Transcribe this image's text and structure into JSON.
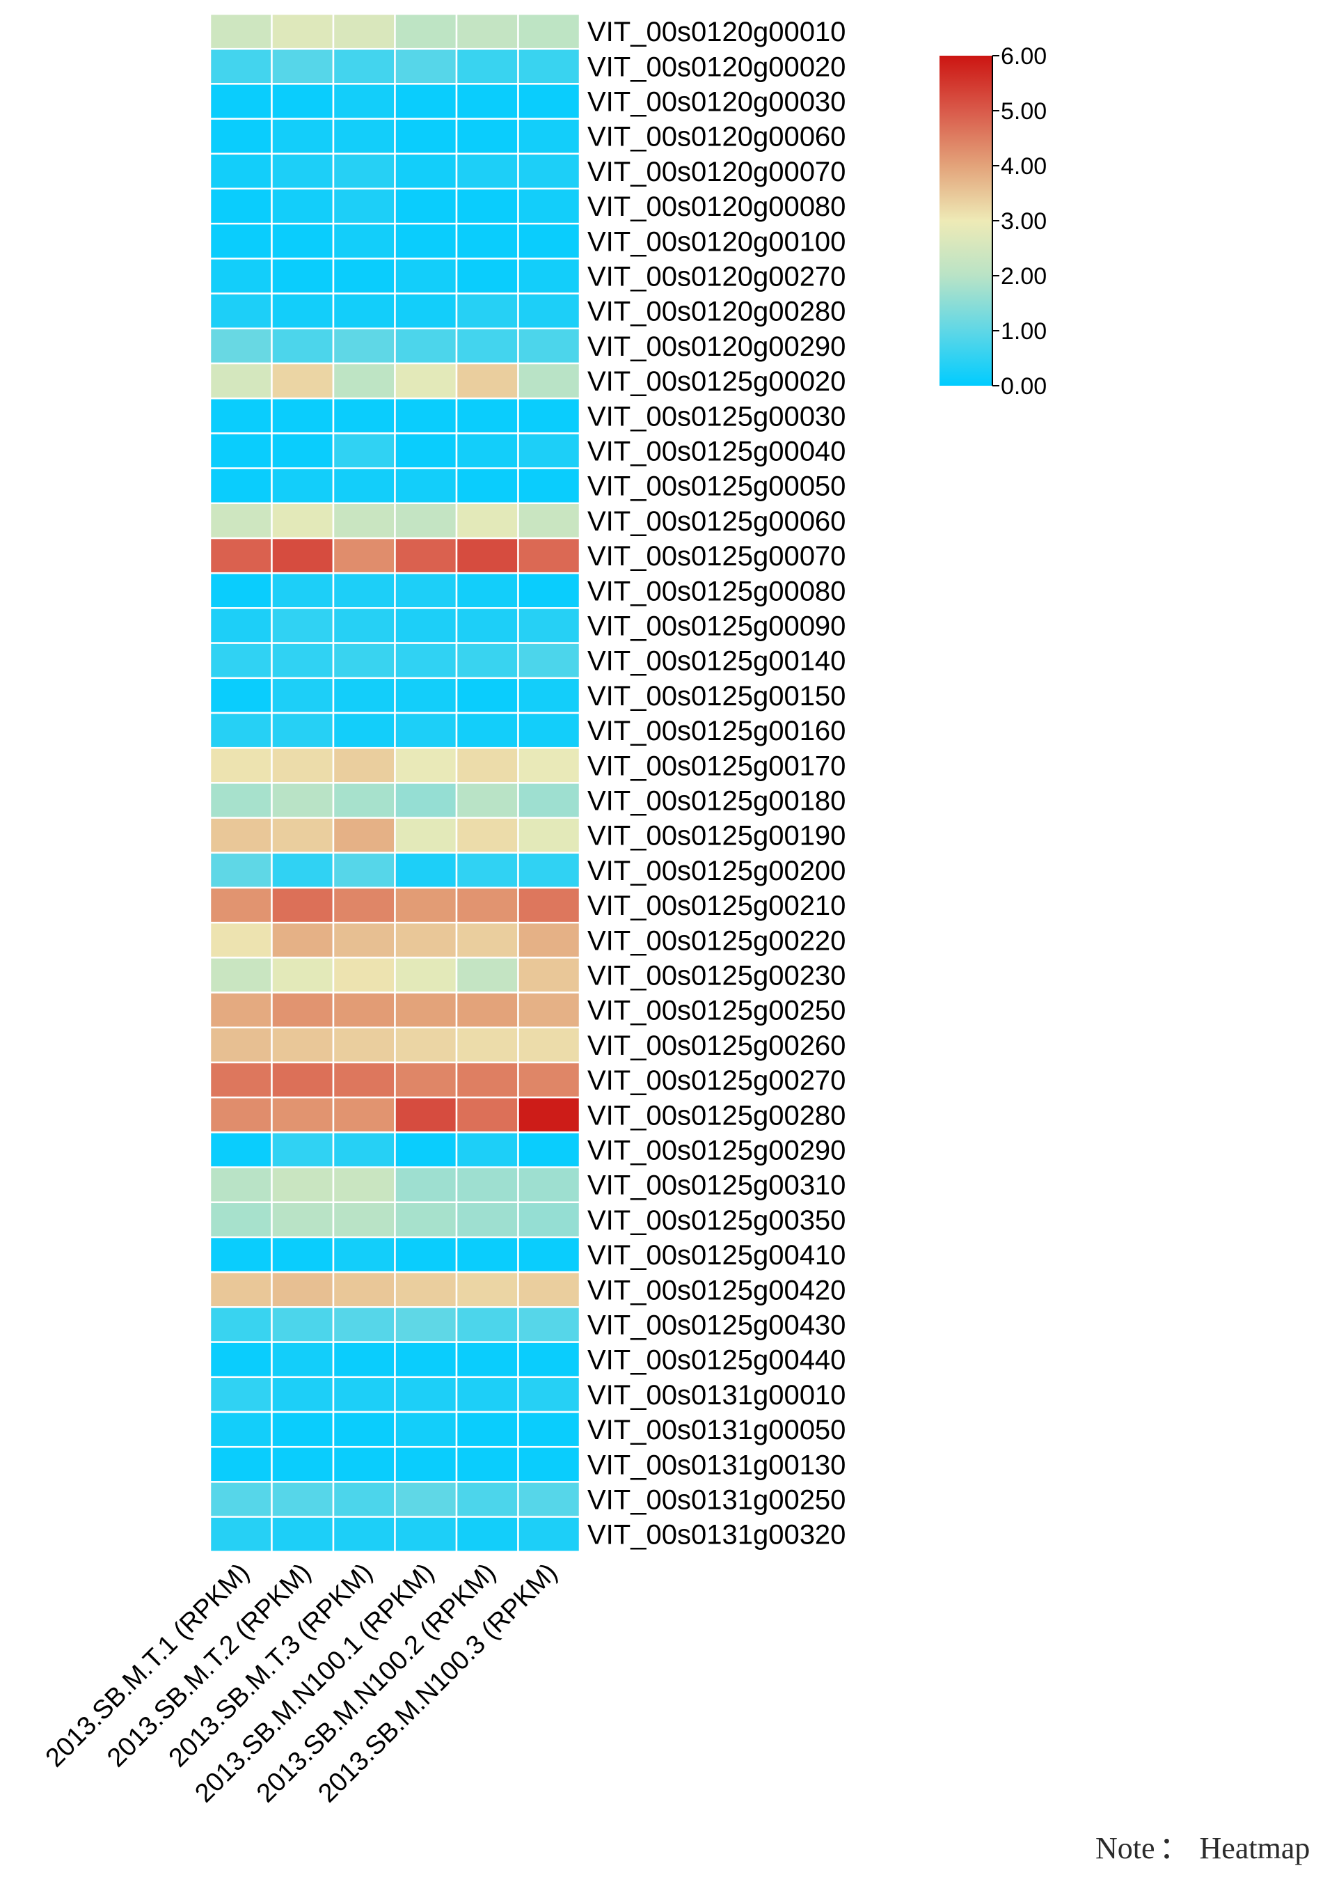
{
  "chart_data": {
    "type": "heatmap",
    "columns": [
      "2013.SB.M.T.1 (RPKM)",
      "2013.SB.M.T.2 (RPKM)",
      "2013.SB.M.T.3 (RPKM)",
      "2013.SB.M.N100.1 (RPKM)",
      "2013.SB.M.N100.2 (RPKM)",
      "2013.SB.M.N100.3 (RPKM)"
    ],
    "rows": [
      {
        "name": "VIT_00s0120g00010",
        "values": [
          2.4,
          2.7,
          2.6,
          2.1,
          2.2,
          2.1
        ]
      },
      {
        "name": "VIT_00s0120g00020",
        "values": [
          0.7,
          0.9,
          0.7,
          0.9,
          0.6,
          0.6
        ]
      },
      {
        "name": "VIT_00s0120g00030",
        "values": [
          0.1,
          0.1,
          0.2,
          0.1,
          0.1,
          0.1
        ]
      },
      {
        "name": "VIT_00s0120g00060",
        "values": [
          0.1,
          0.2,
          0.2,
          0.1,
          0.1,
          0.2
        ]
      },
      {
        "name": "VIT_00s0120g00070",
        "values": [
          0.2,
          0.3,
          0.4,
          0.2,
          0.3,
          0.3
        ]
      },
      {
        "name": "VIT_00s0120g00080",
        "values": [
          0.1,
          0.2,
          0.3,
          0.1,
          0.1,
          0.2
        ]
      },
      {
        "name": "VIT_00s0120g00100",
        "values": [
          0.1,
          0.1,
          0.2,
          0.1,
          0.1,
          0.1
        ]
      },
      {
        "name": "VIT_00s0120g00270",
        "values": [
          0.2,
          0.1,
          0.1,
          0.2,
          0.1,
          0.2
        ]
      },
      {
        "name": "VIT_00s0120g00280",
        "values": [
          0.3,
          0.2,
          0.2,
          0.2,
          0.4,
          0.3
        ]
      },
      {
        "name": "VIT_00s0120g00290",
        "values": [
          1.1,
          0.8,
          1.0,
          0.8,
          0.7,
          0.8
        ]
      },
      {
        "name": "VIT_00s0125g00020",
        "values": [
          2.5,
          3.3,
          2.1,
          2.8,
          3.4,
          2.0
        ]
      },
      {
        "name": "VIT_00s0125g00030",
        "values": [
          0.1,
          0.1,
          0.1,
          0.1,
          0.1,
          0.1
        ]
      },
      {
        "name": "VIT_00s0125g00040",
        "values": [
          0.1,
          0.1,
          0.5,
          0.1,
          0.2,
          0.3
        ]
      },
      {
        "name": "VIT_00s0125g00050",
        "values": [
          0.1,
          0.2,
          0.2,
          0.2,
          0.1,
          0.1
        ]
      },
      {
        "name": "VIT_00s0125g00060",
        "values": [
          2.4,
          2.8,
          2.3,
          2.2,
          2.8,
          2.3
        ]
      },
      {
        "name": "VIT_00s0125g00070",
        "values": [
          4.9,
          5.2,
          4.3,
          4.9,
          5.2,
          4.8
        ]
      },
      {
        "name": "VIT_00s0125g00080",
        "values": [
          0.1,
          0.3,
          0.3,
          0.3,
          0.2,
          0.1
        ]
      },
      {
        "name": "VIT_00s0125g00090",
        "values": [
          0.3,
          0.5,
          0.4,
          0.3,
          0.3,
          0.4
        ]
      },
      {
        "name": "VIT_00s0125g00140",
        "values": [
          0.5,
          0.5,
          0.6,
          0.5,
          0.6,
          0.8
        ]
      },
      {
        "name": "VIT_00s0125g00150",
        "values": [
          0.1,
          0.3,
          0.2,
          0.2,
          0.1,
          0.2
        ]
      },
      {
        "name": "VIT_00s0125g00160",
        "values": [
          0.4,
          0.4,
          0.2,
          0.3,
          0.2,
          0.2
        ]
      },
      {
        "name": "VIT_00s0125g00170",
        "values": [
          3.1,
          3.2,
          3.4,
          2.9,
          3.2,
          2.9
        ]
      },
      {
        "name": "VIT_00s0125g00180",
        "values": [
          1.8,
          2.0,
          1.8,
          1.6,
          2.0,
          1.7
        ]
      },
      {
        "name": "VIT_00s0125g00190",
        "values": [
          3.5,
          3.4,
          3.8,
          2.8,
          3.2,
          2.8
        ]
      },
      {
        "name": "VIT_00s0125g00200",
        "values": [
          1.0,
          0.5,
          0.9,
          0.3,
          0.5,
          0.5
        ]
      },
      {
        "name": "VIT_00s0125g00210",
        "values": [
          4.2,
          4.7,
          4.4,
          4.1,
          4.2,
          4.6
        ]
      },
      {
        "name": "VIT_00s0125g00220",
        "values": [
          3.1,
          3.8,
          3.6,
          3.5,
          3.4,
          3.8
        ]
      },
      {
        "name": "VIT_00s0125g00230",
        "values": [
          2.3,
          2.8,
          3.1,
          2.8,
          2.2,
          3.5
        ]
      },
      {
        "name": "VIT_00s0125g00250",
        "values": [
          3.9,
          4.2,
          4.1,
          4.0,
          4.0,
          3.8
        ]
      },
      {
        "name": "VIT_00s0125g00260",
        "values": [
          3.6,
          3.5,
          3.4,
          3.3,
          3.2,
          3.2
        ]
      },
      {
        "name": "VIT_00s0125g00270",
        "values": [
          4.6,
          4.7,
          4.6,
          4.4,
          4.5,
          4.4
        ]
      },
      {
        "name": "VIT_00s0125g00280",
        "values": [
          4.3,
          4.2,
          4.2,
          5.2,
          4.7,
          5.9
        ]
      },
      {
        "name": "VIT_00s0125g00290",
        "values": [
          0.1,
          0.5,
          0.4,
          0.1,
          0.3,
          0.1
        ]
      },
      {
        "name": "VIT_00s0125g00310",
        "values": [
          2.0,
          2.3,
          2.3,
          1.7,
          1.7,
          1.7
        ]
      },
      {
        "name": "VIT_00s0125g00350",
        "values": [
          1.8,
          2.0,
          2.0,
          1.8,
          1.7,
          1.6
        ]
      },
      {
        "name": "VIT_00s0125g00410",
        "values": [
          0.1,
          0.1,
          0.2,
          0.1,
          0.1,
          0.1
        ]
      },
      {
        "name": "VIT_00s0125g00420",
        "values": [
          3.5,
          3.6,
          3.5,
          3.4,
          3.3,
          3.4
        ]
      },
      {
        "name": "VIT_00s0125g00430",
        "values": [
          0.6,
          0.8,
          0.9,
          1.0,
          0.8,
          0.9
        ]
      },
      {
        "name": "VIT_00s0125g00440",
        "values": [
          0.1,
          0.2,
          0.1,
          0.1,
          0.1,
          0.1
        ]
      },
      {
        "name": "VIT_00s0131g00010",
        "values": [
          0.5,
          0.3,
          0.3,
          0.3,
          0.3,
          0.4
        ]
      },
      {
        "name": "VIT_00s0131g00050",
        "values": [
          0.2,
          0.1,
          0.1,
          0.2,
          0.1,
          0.1
        ]
      },
      {
        "name": "VIT_00s0131g00130",
        "values": [
          0.1,
          0.1,
          0.1,
          0.1,
          0.1,
          0.1
        ]
      },
      {
        "name": "VIT_00s0131g00250",
        "values": [
          0.9,
          0.9,
          0.8,
          1.0,
          0.8,
          0.9
        ]
      },
      {
        "name": "VIT_00s0131g00320",
        "values": [
          0.4,
          0.3,
          0.3,
          0.3,
          0.2,
          0.3
        ]
      }
    ],
    "color_scale": {
      "min": 0,
      "max": 6,
      "ticks": [
        "0.00",
        "1.00",
        "2.00",
        "3.00",
        "4.00",
        "5.00",
        "6.00"
      ],
      "stops": [
        {
          "value": 0,
          "color": "#00ccff"
        },
        {
          "value": 1,
          "color": "#5fd7e6"
        },
        {
          "value": 2,
          "color": "#b9e3c6"
        },
        {
          "value": 3,
          "color": "#eeeab6"
        },
        {
          "value": 4,
          "color": "#e3a37a"
        },
        {
          "value": 5,
          "color": "#d95a4a"
        },
        {
          "value": 6,
          "color": "#cc1512"
        }
      ]
    },
    "grid": true,
    "legend_placement": "top-right"
  },
  "note": {
    "label": "Note",
    "separator": "：",
    "text": "Heatmap"
  }
}
